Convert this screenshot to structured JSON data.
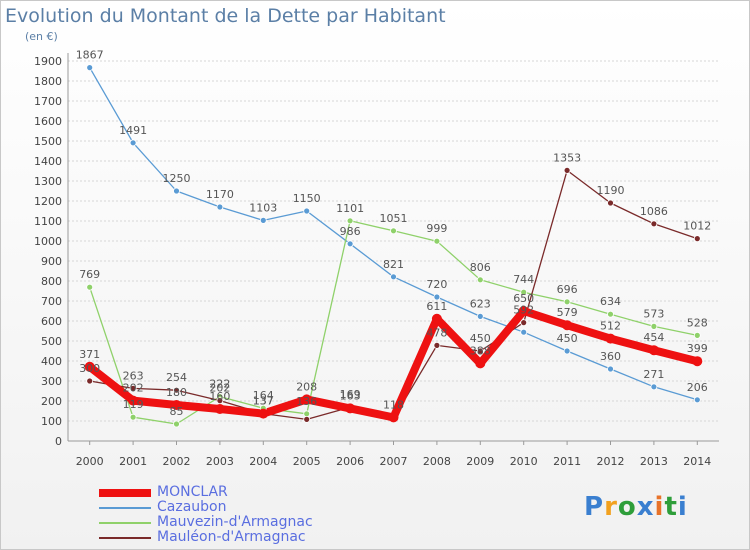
{
  "title": "Evolution du Montant de la Dette par Habitant",
  "unit": "(en €)",
  "logo": {
    "text": "Proxiti",
    "colors": [
      "#3a7fd0",
      "#f2a11f",
      "#2e9e3a",
      "#3a7fd0",
      "#e8732a",
      "#2e9e3a",
      "#3a7fd0"
    ]
  },
  "chart_data": {
    "type": "line",
    "x": [
      "2000",
      "2001",
      "2002",
      "2003",
      "2004",
      "2005",
      "2006",
      "2007",
      "2008",
      "2009",
      "2010",
      "2011",
      "2012",
      "2013",
      "2014"
    ],
    "ylim": [
      0,
      1900
    ],
    "yticks": [
      "0",
      "100",
      "200",
      "300",
      "400",
      "500",
      "600",
      "700",
      "800",
      "900",
      "1000",
      "1100",
      "1200",
      "1300",
      "1400",
      "1500",
      "1600",
      "1700",
      "1800",
      "1900"
    ],
    "grid": true,
    "legend_position": "bottom-left",
    "series": [
      {
        "name": "Cazaubon",
        "color": "#5a9bd4",
        "values": [
          1867,
          1491,
          1250,
          1170,
          1103,
          1150,
          986,
          821,
          720,
          623,
          544,
          450,
          360,
          271,
          206
        ],
        "labels": [
          "1867",
          "1491",
          "1250",
          "1170",
          "1103",
          "1150",
          "986",
          "821",
          "720",
          "623",
          "",
          "450",
          "360",
          "271",
          "206"
        ]
      },
      {
        "name": "Mauvezin-d'Armagnac",
        "color": "#8fd16a",
        "values": [
          769,
          119,
          85,
          222,
          164,
          136,
          1101,
          1051,
          999,
          806,
          744,
          696,
          634,
          573,
          528
        ],
        "labels": [
          "769",
          "119",
          "85",
          "222",
          "164",
          "136",
          "1101",
          "1051",
          "999",
          "806",
          "744",
          "696",
          "634",
          "573",
          "528"
        ]
      },
      {
        "name": "Mauléon-d'Armagnac",
        "color": "#7a2a2a",
        "values": [
          300,
          263,
          254,
          202,
          137,
          108,
          169,
          112,
          478,
          450,
          592,
          1353,
          1190,
          1086,
          1012
        ],
        "labels": [
          "300",
          "263",
          "254",
          "202",
          "137",
          "",
          "169",
          "",
          "478",
          "450",
          "592",
          "1353",
          "1190",
          "1086",
          "1012"
        ]
      },
      {
        "name": "MONCLAR",
        "color": "#ee1111",
        "values": [
          371,
          202,
          180,
          160,
          137,
          208,
          163,
          118,
          611,
          388,
          650,
          579,
          512,
          454,
          399
        ],
        "labels": [
          "371",
          "202",
          "180",
          "160",
          "137",
          "208",
          "163",
          "118",
          "611",
          "388",
          "650",
          "579",
          "512",
          "454",
          "399"
        ]
      }
    ],
    "legend": [
      {
        "name": "MONCLAR",
        "color": "#ee1111",
        "label_color": "#5a6ee0"
      },
      {
        "name": "Cazaubon",
        "color": "#5a9bd4",
        "label_color": "#5a6ee0"
      },
      {
        "name": "Mauvezin-d'Armagnac",
        "color": "#8fd16a",
        "label_color": "#5a6ee0"
      },
      {
        "name": "Mauléon-d'Armagnac",
        "color": "#7a2a2a",
        "label_color": "#5a6ee0"
      }
    ]
  }
}
